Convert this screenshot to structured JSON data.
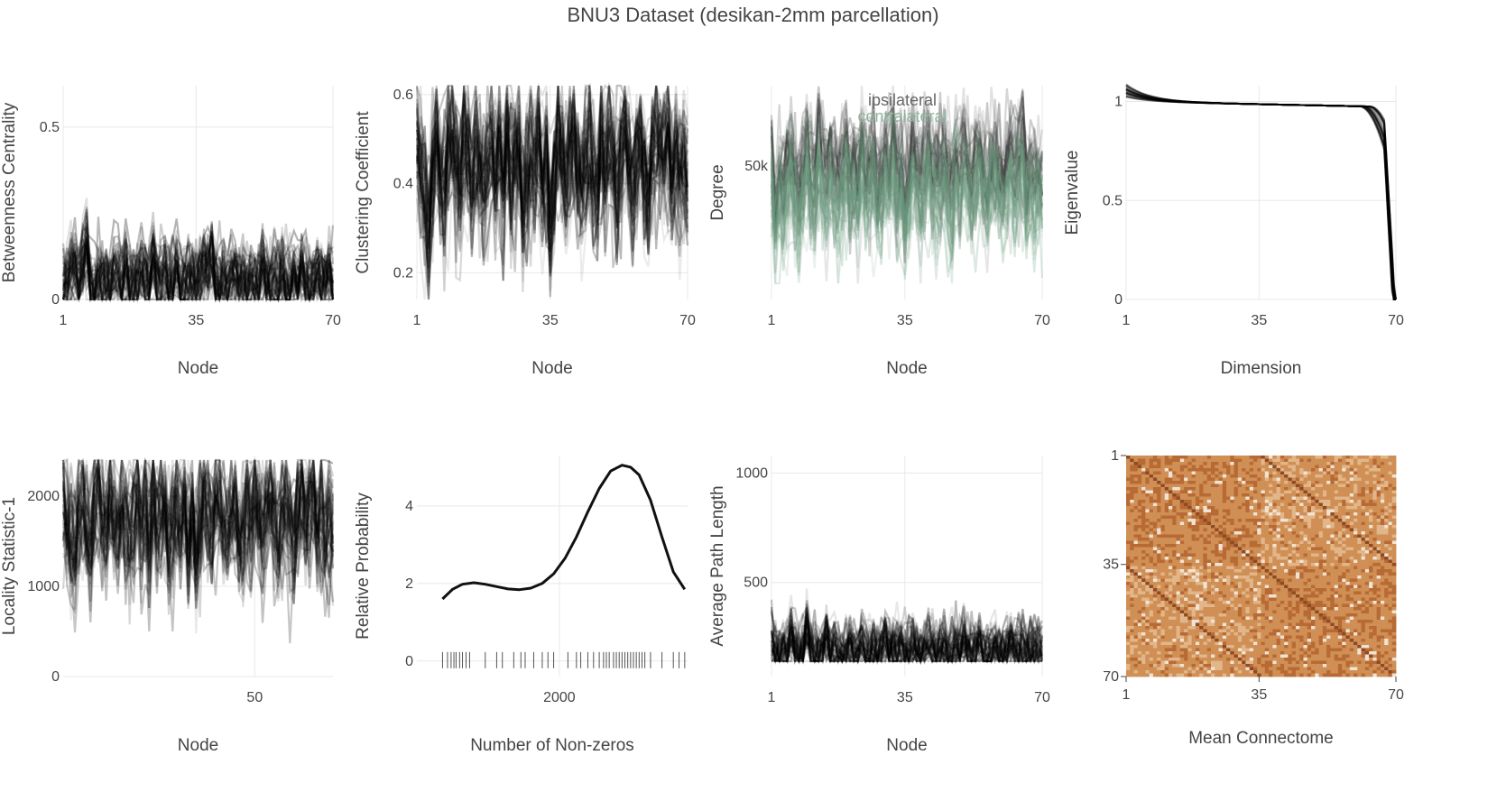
{
  "title": "BNU3 Dataset (desikan-2mm parcellation)",
  "chart_data": [
    {
      "type": "line",
      "id": "betweenness",
      "xlabel": "Node",
      "ylabel": "Betweenness Centrality",
      "xlim": [
        1,
        70
      ],
      "ylim": [
        0,
        0.62
      ],
      "xticks": [
        1,
        35,
        70
      ],
      "yticks": [
        0,
        0.5
      ],
      "ytick_labels": [
        "0",
        "0.5"
      ],
      "grid": true,
      "n_subjects": 45,
      "color": "#000000",
      "profile": [
        0.02,
        0.05,
        0.08,
        0.1,
        0.04,
        0.12,
        0.15,
        0.03,
        0.02,
        0.06,
        0.04,
        0.05,
        0.03,
        0.08,
        0.06,
        0.04,
        0.1,
        0.05,
        0.03,
        0.06,
        0.09,
        0.04,
        0.03,
        0.12,
        0.05,
        0.04,
        0.06,
        0.03,
        0.05,
        0.09,
        0.03,
        0.04,
        0.07,
        0.05,
        0.04,
        0.06,
        0.1,
        0.08,
        0.12,
        0.04,
        0.03,
        0.05,
        0.03,
        0.08,
        0.06,
        0.04,
        0.05,
        0.03,
        0.07,
        0.05,
        0.04,
        0.1,
        0.06,
        0.03,
        0.05,
        0.04,
        0.08,
        0.05,
        0.03,
        0.06,
        0.04,
        0.09,
        0.05,
        0.03,
        0.04,
        0.07,
        0.05,
        0.06,
        0.08,
        0.04
      ],
      "spread": 0.05,
      "floor": 0
    },
    {
      "type": "line",
      "id": "clustering",
      "xlabel": "Node",
      "ylabel": "Clustering Coefficient",
      "xlim": [
        1,
        70
      ],
      "ylim": [
        0.14,
        0.62
      ],
      "xticks": [
        1,
        35,
        70
      ],
      "yticks": [
        0.2,
        0.4,
        0.6
      ],
      "ytick_labels": [
        "0.2",
        "0.4",
        "0.6"
      ],
      "grid": true,
      "n_subjects": 45,
      "color": "#000000",
      "profile": [
        0.5,
        0.42,
        0.38,
        0.3,
        0.45,
        0.5,
        0.4,
        0.38,
        0.48,
        0.5,
        0.44,
        0.4,
        0.52,
        0.46,
        0.4,
        0.48,
        0.44,
        0.38,
        0.45,
        0.5,
        0.42,
        0.48,
        0.4,
        0.52,
        0.44,
        0.46,
        0.5,
        0.36,
        0.42,
        0.48,
        0.44,
        0.5,
        0.4,
        0.46,
        0.3,
        0.42,
        0.5,
        0.46,
        0.4,
        0.48,
        0.52,
        0.44,
        0.4,
        0.46,
        0.5,
        0.42,
        0.38,
        0.48,
        0.44,
        0.5,
        0.46,
        0.4,
        0.48,
        0.52,
        0.44,
        0.4,
        0.46,
        0.5,
        0.42,
        0.38,
        0.46,
        0.5,
        0.44,
        0.48,
        0.52,
        0.4,
        0.46,
        0.42,
        0.44,
        0.4
      ],
      "spread": 0.07,
      "floor": 0.14
    },
    {
      "type": "line",
      "id": "degree",
      "xlabel": "Node",
      "ylabel": "Degree",
      "xlim": [
        1,
        70
      ],
      "ylim": [
        0,
        80000
      ],
      "xticks": [
        1,
        35,
        70
      ],
      "yticks": [
        50000
      ],
      "ytick_labels": [
        "50k"
      ],
      "grid": true,
      "n_subjects": 30,
      "series": [
        {
          "name": "ipsilateral",
          "color": "#333333",
          "offset": 4000
        },
        {
          "name": "contralateral",
          "color": "#6a9a7e",
          "offset": -6000
        }
      ],
      "legend": "top-center",
      "profile": [
        48000,
        30000,
        42000,
        38000,
        46000,
        50000,
        40000,
        36000,
        48000,
        52000,
        44000,
        40000,
        54000,
        46000,
        42000,
        48000,
        44000,
        38000,
        46000,
        52000,
        42000,
        48000,
        40000,
        54000,
        44000,
        46000,
        50000,
        36000,
        42000,
        48000,
        44000,
        56000,
        40000,
        46000,
        30000,
        42000,
        52000,
        46000,
        40000,
        48000,
        54000,
        44000,
        40000,
        46000,
        50000,
        42000,
        38000,
        48000,
        44000,
        52000,
        46000,
        40000,
        48000,
        54000,
        44000,
        40000,
        46000,
        50000,
        42000,
        38000,
        46000,
        52000,
        44000,
        48000,
        54000,
        40000,
        46000,
        42000,
        44000,
        40000
      ],
      "spread": 9000,
      "floor": 6000
    },
    {
      "type": "line",
      "id": "eigenvalue",
      "xlabel": "Dimension",
      "ylabel": "Eigenvalue",
      "xlim": [
        1,
        70
      ],
      "ylim": [
        0,
        1.08
      ],
      "xticks": [
        1,
        35,
        70
      ],
      "yticks": [
        0,
        0.5,
        1
      ],
      "ytick_labels": [
        "0",
        "0.5",
        "1"
      ],
      "grid": true,
      "n_subjects": 45,
      "color": "#000000"
    },
    {
      "type": "line",
      "id": "locality",
      "xlabel": "Node",
      "ylabel": "Locality Statistic-1",
      "xlim": [
        1,
        70
      ],
      "ylim": [
        0,
        2450
      ],
      "xticks": [
        50
      ],
      "yticks": [
        0,
        1000,
        2000
      ],
      "ytick_labels": [
        "0",
        "1000",
        "2000"
      ],
      "grid": true,
      "n_subjects": 45,
      "color": "#000000",
      "profile": [
        1900,
        1700,
        1500,
        1300,
        1800,
        2000,
        1600,
        1500,
        1900,
        2100,
        1700,
        1600,
        2000,
        1800,
        1600,
        1900,
        1700,
        1500,
        1800,
        2000,
        1600,
        1900,
        1500,
        2000,
        1700,
        1800,
        1900,
        1400,
        1600,
        1900,
        1700,
        2000,
        1500,
        1800,
        1300,
        1600,
        2000,
        1800,
        1600,
        1900,
        2000,
        1700,
        1600,
        1800,
        1900,
        1600,
        1500,
        1900,
        1700,
        2000,
        1800,
        1600,
        1900,
        2000,
        1700,
        1600,
        1800,
        1900,
        1600,
        1500,
        1800,
        2000,
        1700,
        1900,
        2000,
        1600,
        1800,
        1600,
        1700,
        1600
      ],
      "spread": 300,
      "floor": 150,
      "ceil": 2400
    },
    {
      "type": "line",
      "id": "nonzeros",
      "xlabel": "Number of Non-zeros",
      "ylabel": "Relative Probability",
      "xlim": [
        1000,
        2900
      ],
      "ylim": [
        -0.4,
        5.3
      ],
      "xticks": [
        2000
      ],
      "yticks": [
        0,
        2,
        4
      ],
      "ytick_labels": [
        "0",
        "2",
        "4"
      ],
      "grid": true,
      "color": "#111111",
      "x": [
        1180,
        1250,
        1320,
        1400,
        1480,
        1560,
        1640,
        1720,
        1800,
        1880,
        1960,
        2040,
        2120,
        2200,
        2280,
        2360,
        2440,
        2500,
        2560,
        2640,
        2720,
        2800,
        2880
      ],
      "y": [
        1.6,
        1.85,
        1.98,
        2.02,
        1.98,
        1.92,
        1.86,
        1.84,
        1.88,
        2.0,
        2.25,
        2.65,
        3.2,
        3.85,
        4.45,
        4.9,
        5.05,
        5.0,
        4.8,
        4.15,
        3.2,
        2.3,
        1.85
      ],
      "rug": [
        1180,
        1215,
        1240,
        1260,
        1275,
        1300,
        1320,
        1345,
        1370,
        1480,
        1560,
        1600,
        1680,
        1730,
        1760,
        1820,
        1880,
        1920,
        1960,
        2060,
        2120,
        2150,
        2200,
        2240,
        2280,
        2310,
        2330,
        2350,
        2380,
        2400,
        2420,
        2440,
        2460,
        2480,
        2500,
        2520,
        2540,
        2560,
        2580,
        2600,
        2640,
        2720,
        2800,
        2840,
        2880
      ]
    },
    {
      "type": "line",
      "id": "pathlength",
      "xlabel": "Node",
      "ylabel": "Average Path Length",
      "xlim": [
        1,
        70
      ],
      "ylim": [
        70,
        1080
      ],
      "xticks": [
        1,
        35,
        70
      ],
      "yticks": [
        500,
        1000
      ],
      "ytick_labels": [
        "500",
        "1000"
      ],
      "grid": true,
      "n_subjects": 45,
      "color": "#000000",
      "profile": [
        220,
        170,
        160,
        180,
        170,
        260,
        200,
        170,
        180,
        300,
        190,
        170,
        180,
        200,
        250,
        170,
        190,
        180,
        170,
        200,
        220,
        180,
        170,
        250,
        190,
        180,
        200,
        170,
        180,
        230,
        200,
        190,
        180,
        200,
        170,
        180,
        220,
        200,
        180,
        190,
        240,
        180,
        170,
        190,
        210,
        180,
        170,
        200,
        190,
        250,
        200,
        180,
        190,
        230,
        180,
        170,
        190,
        210,
        180,
        170,
        200,
        240,
        190,
        180,
        200,
        170,
        190,
        180,
        200,
        190
      ],
      "spread": 60,
      "floor": 140
    },
    {
      "type": "heatmap",
      "id": "connectome",
      "xlabel": "Mean Connectome",
      "ylabel": "",
      "xlim": [
        1,
        70
      ],
      "ylim": [
        1,
        70
      ],
      "xticks": [
        1,
        35,
        70
      ],
      "yticks": [
        1,
        35,
        70
      ],
      "n": 70,
      "colors": [
        "#f1e3d3",
        "#e2b688",
        "#cf8f55",
        "#b86a34",
        "#8e4a24"
      ]
    }
  ]
}
